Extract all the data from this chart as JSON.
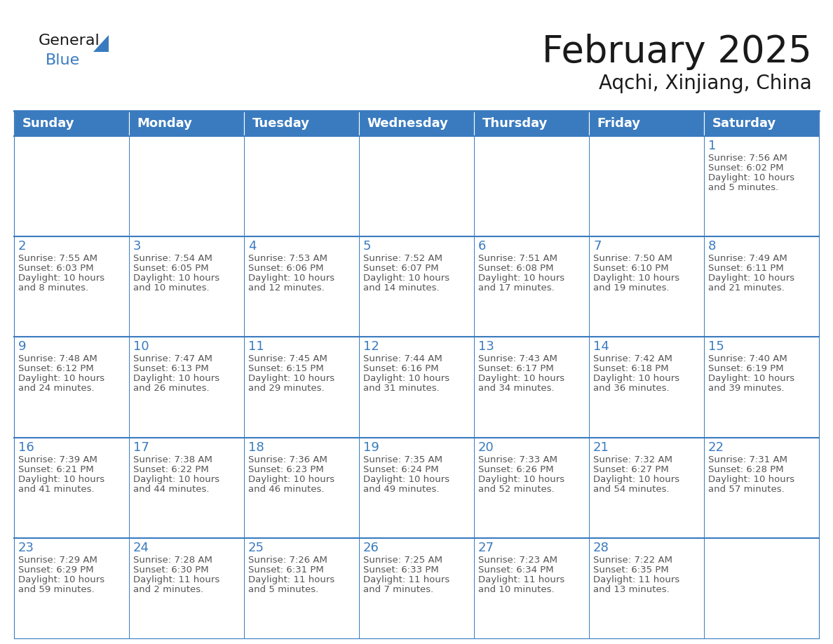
{
  "title": "February 2025",
  "subtitle": "Aqchi, Xinjiang, China",
  "header_bg_color": "#3a7bbf",
  "header_text_color": "#ffffff",
  "cell_border_color": "#3a7bbf",
  "day_number_color": "#3a7bbf",
  "text_color": "#555555",
  "background_color": "#ffffff",
  "row_alt_color": "#f2f5f8",
  "days_of_week": [
    "Sunday",
    "Monday",
    "Tuesday",
    "Wednesday",
    "Thursday",
    "Friday",
    "Saturday"
  ],
  "weeks": [
    [
      {
        "day": null,
        "info": null
      },
      {
        "day": null,
        "info": null
      },
      {
        "day": null,
        "info": null
      },
      {
        "day": null,
        "info": null
      },
      {
        "day": null,
        "info": null
      },
      {
        "day": null,
        "info": null
      },
      {
        "day": 1,
        "info": "Sunrise: 7:56 AM\nSunset: 6:02 PM\nDaylight: 10 hours\nand 5 minutes."
      }
    ],
    [
      {
        "day": 2,
        "info": "Sunrise: 7:55 AM\nSunset: 6:03 PM\nDaylight: 10 hours\nand 8 minutes."
      },
      {
        "day": 3,
        "info": "Sunrise: 7:54 AM\nSunset: 6:05 PM\nDaylight: 10 hours\nand 10 minutes."
      },
      {
        "day": 4,
        "info": "Sunrise: 7:53 AM\nSunset: 6:06 PM\nDaylight: 10 hours\nand 12 minutes."
      },
      {
        "day": 5,
        "info": "Sunrise: 7:52 AM\nSunset: 6:07 PM\nDaylight: 10 hours\nand 14 minutes."
      },
      {
        "day": 6,
        "info": "Sunrise: 7:51 AM\nSunset: 6:08 PM\nDaylight: 10 hours\nand 17 minutes."
      },
      {
        "day": 7,
        "info": "Sunrise: 7:50 AM\nSunset: 6:10 PM\nDaylight: 10 hours\nand 19 minutes."
      },
      {
        "day": 8,
        "info": "Sunrise: 7:49 AM\nSunset: 6:11 PM\nDaylight: 10 hours\nand 21 minutes."
      }
    ],
    [
      {
        "day": 9,
        "info": "Sunrise: 7:48 AM\nSunset: 6:12 PM\nDaylight: 10 hours\nand 24 minutes."
      },
      {
        "day": 10,
        "info": "Sunrise: 7:47 AM\nSunset: 6:13 PM\nDaylight: 10 hours\nand 26 minutes."
      },
      {
        "day": 11,
        "info": "Sunrise: 7:45 AM\nSunset: 6:15 PM\nDaylight: 10 hours\nand 29 minutes."
      },
      {
        "day": 12,
        "info": "Sunrise: 7:44 AM\nSunset: 6:16 PM\nDaylight: 10 hours\nand 31 minutes."
      },
      {
        "day": 13,
        "info": "Sunrise: 7:43 AM\nSunset: 6:17 PM\nDaylight: 10 hours\nand 34 minutes."
      },
      {
        "day": 14,
        "info": "Sunrise: 7:42 AM\nSunset: 6:18 PM\nDaylight: 10 hours\nand 36 minutes."
      },
      {
        "day": 15,
        "info": "Sunrise: 7:40 AM\nSunset: 6:19 PM\nDaylight: 10 hours\nand 39 minutes."
      }
    ],
    [
      {
        "day": 16,
        "info": "Sunrise: 7:39 AM\nSunset: 6:21 PM\nDaylight: 10 hours\nand 41 minutes."
      },
      {
        "day": 17,
        "info": "Sunrise: 7:38 AM\nSunset: 6:22 PM\nDaylight: 10 hours\nand 44 minutes."
      },
      {
        "day": 18,
        "info": "Sunrise: 7:36 AM\nSunset: 6:23 PM\nDaylight: 10 hours\nand 46 minutes."
      },
      {
        "day": 19,
        "info": "Sunrise: 7:35 AM\nSunset: 6:24 PM\nDaylight: 10 hours\nand 49 minutes."
      },
      {
        "day": 20,
        "info": "Sunrise: 7:33 AM\nSunset: 6:26 PM\nDaylight: 10 hours\nand 52 minutes."
      },
      {
        "day": 21,
        "info": "Sunrise: 7:32 AM\nSunset: 6:27 PM\nDaylight: 10 hours\nand 54 minutes."
      },
      {
        "day": 22,
        "info": "Sunrise: 7:31 AM\nSunset: 6:28 PM\nDaylight: 10 hours\nand 57 minutes."
      }
    ],
    [
      {
        "day": 23,
        "info": "Sunrise: 7:29 AM\nSunset: 6:29 PM\nDaylight: 10 hours\nand 59 minutes."
      },
      {
        "day": 24,
        "info": "Sunrise: 7:28 AM\nSunset: 6:30 PM\nDaylight: 11 hours\nand 2 minutes."
      },
      {
        "day": 25,
        "info": "Sunrise: 7:26 AM\nSunset: 6:31 PM\nDaylight: 11 hours\nand 5 minutes."
      },
      {
        "day": 26,
        "info": "Sunrise: 7:25 AM\nSunset: 6:33 PM\nDaylight: 11 hours\nand 7 minutes."
      },
      {
        "day": 27,
        "info": "Sunrise: 7:23 AM\nSunset: 6:34 PM\nDaylight: 11 hours\nand 10 minutes."
      },
      {
        "day": 28,
        "info": "Sunrise: 7:22 AM\nSunset: 6:35 PM\nDaylight: 11 hours\nand 13 minutes."
      },
      {
        "day": null,
        "info": null
      }
    ]
  ],
  "logo_triangle_color": "#3a7bbf",
  "title_fontsize": 38,
  "subtitle_fontsize": 20,
  "header_fontsize": 13,
  "day_num_fontsize": 13,
  "cell_text_fontsize": 9.5,
  "fig_width": 11.88,
  "fig_height": 9.18,
  "dpi": 100
}
